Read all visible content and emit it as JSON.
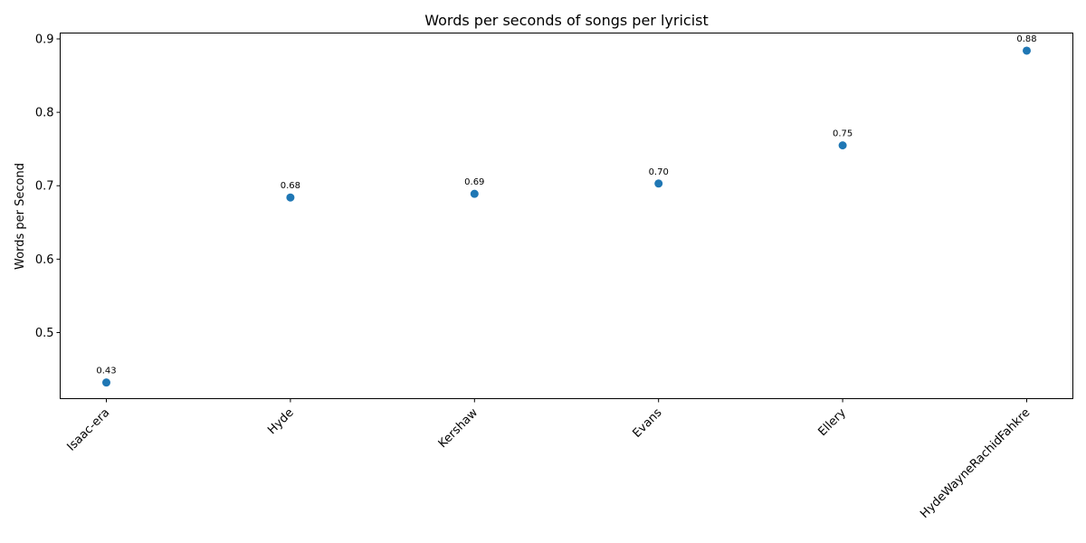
{
  "chart_data": {
    "type": "scatter",
    "title": "Words per seconds of songs per lyricist",
    "xlabel": "",
    "ylabel": "Words per Second",
    "categories": [
      "Isaac-era",
      "Hyde",
      "Kershaw",
      "Evans",
      "Ellery",
      "HydeWayneRachidFahkre"
    ],
    "values": [
      0.432,
      0.684,
      0.689,
      0.703,
      0.755,
      0.884
    ],
    "data_labels": [
      "0.43",
      "0.68",
      "0.69",
      "0.70",
      "0.75",
      "0.88"
    ],
    "ylim": [
      0.41,
      0.908
    ],
    "yticks": [
      0.5,
      0.6,
      0.7,
      0.8,
      0.9
    ],
    "ytick_labels": [
      "0.5",
      "0.6",
      "0.7",
      "0.8",
      "0.9"
    ],
    "grid": false,
    "marker_color": "#1f77b4"
  }
}
